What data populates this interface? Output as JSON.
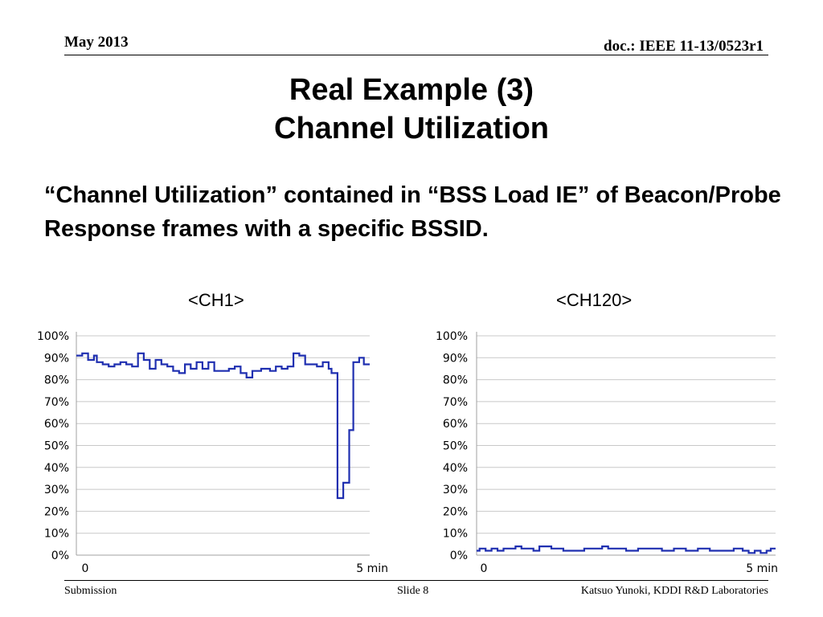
{
  "header": {
    "date": "May 2013",
    "doc": "doc.: IEEE 11-13/0523r1"
  },
  "title": {
    "line1": "Real Example (3)",
    "line2": "Channel Utilization"
  },
  "body": "“Channel Utilization” contained in “BSS Load IE” of Beacon/Probe Response frames with a specific BSSID.",
  "chart_data": [
    {
      "type": "line",
      "title": "<CH1>",
      "xlabel": "",
      "ylabel": "",
      "x_ticks": [
        "0",
        "5 min"
      ],
      "y_ticks": [
        "0%",
        "10%",
        "20%",
        "30%",
        "40%",
        "50%",
        "60%",
        "70%",
        "80%",
        "90%",
        "100%"
      ],
      "ylim": [
        0,
        100
      ],
      "xlim": [
        0,
        5
      ],
      "grid": true,
      "line_color": "#1f2fb0",
      "series": [
        {
          "values": [
            [
              0.0,
              91
            ],
            [
              0.1,
              92
            ],
            [
              0.2,
              89
            ],
            [
              0.3,
              91
            ],
            [
              0.35,
              88
            ],
            [
              0.45,
              87
            ],
            [
              0.55,
              86
            ],
            [
              0.65,
              87
            ],
            [
              0.75,
              88
            ],
            [
              0.85,
              87
            ],
            [
              0.95,
              86
            ],
            [
              1.05,
              92
            ],
            [
              1.15,
              89
            ],
            [
              1.25,
              85
            ],
            [
              1.35,
              89
            ],
            [
              1.45,
              87
            ],
            [
              1.55,
              86
            ],
            [
              1.65,
              84
            ],
            [
              1.75,
              83
            ],
            [
              1.85,
              87
            ],
            [
              1.95,
              85
            ],
            [
              2.05,
              88
            ],
            [
              2.15,
              85
            ],
            [
              2.25,
              88
            ],
            [
              2.35,
              84
            ],
            [
              2.5,
              84
            ],
            [
              2.6,
              85
            ],
            [
              2.7,
              86
            ],
            [
              2.8,
              83
            ],
            [
              2.9,
              81
            ],
            [
              3.0,
              84
            ],
            [
              3.15,
              85
            ],
            [
              3.3,
              84
            ],
            [
              3.4,
              86
            ],
            [
              3.5,
              85
            ],
            [
              3.6,
              86
            ],
            [
              3.7,
              92
            ],
            [
              3.8,
              91
            ],
            [
              3.9,
              87
            ],
            [
              4.0,
              87
            ],
            [
              4.1,
              86
            ],
            [
              4.2,
              88
            ],
            [
              4.3,
              85
            ],
            [
              4.35,
              83
            ],
            [
              4.42,
              83
            ],
            [
              4.45,
              26
            ],
            [
              4.55,
              33
            ],
            [
              4.65,
              57
            ],
            [
              4.72,
              88
            ],
            [
              4.82,
              90
            ],
            [
              4.9,
              87
            ],
            [
              5.0,
              87
            ]
          ]
        }
      ]
    },
    {
      "type": "line",
      "title": "<CH120>",
      "xlabel": "",
      "ylabel": "",
      "x_ticks": [
        "0",
        "5 min"
      ],
      "y_ticks": [
        "0%",
        "10%",
        "20%",
        "30%",
        "40%",
        "50%",
        "60%",
        "70%",
        "80%",
        "90%",
        "100%"
      ],
      "ylim": [
        0,
        100
      ],
      "xlim": [
        0,
        5
      ],
      "grid": true,
      "line_color": "#1f2fb0",
      "series": [
        {
          "values": [
            [
              0.0,
              2
            ],
            [
              0.05,
              3
            ],
            [
              0.15,
              2
            ],
            [
              0.25,
              3
            ],
            [
              0.35,
              2
            ],
            [
              0.45,
              3
            ],
            [
              0.55,
              3
            ],
            [
              0.65,
              4
            ],
            [
              0.75,
              3
            ],
            [
              0.85,
              3
            ],
            [
              0.95,
              2
            ],
            [
              1.05,
              4
            ],
            [
              1.15,
              4
            ],
            [
              1.25,
              3
            ],
            [
              1.35,
              3
            ],
            [
              1.45,
              2
            ],
            [
              1.6,
              2
            ],
            [
              1.8,
              3
            ],
            [
              2.0,
              3
            ],
            [
              2.1,
              4
            ],
            [
              2.2,
              3
            ],
            [
              2.35,
              3
            ],
            [
              2.5,
              2
            ],
            [
              2.7,
              3
            ],
            [
              2.9,
              3
            ],
            [
              3.1,
              2
            ],
            [
              3.3,
              3
            ],
            [
              3.5,
              2
            ],
            [
              3.7,
              3
            ],
            [
              3.9,
              2
            ],
            [
              4.1,
              2
            ],
            [
              4.3,
              3
            ],
            [
              4.45,
              2
            ],
            [
              4.55,
              1
            ],
            [
              4.65,
              2
            ],
            [
              4.75,
              1
            ],
            [
              4.85,
              2
            ],
            [
              4.92,
              3
            ],
            [
              5.0,
              3
            ]
          ]
        }
      ]
    }
  ],
  "footer": {
    "left": "Submission",
    "center": "Slide 8",
    "right": "Katsuo Yunoki, KDDI R&D Laboratories"
  }
}
